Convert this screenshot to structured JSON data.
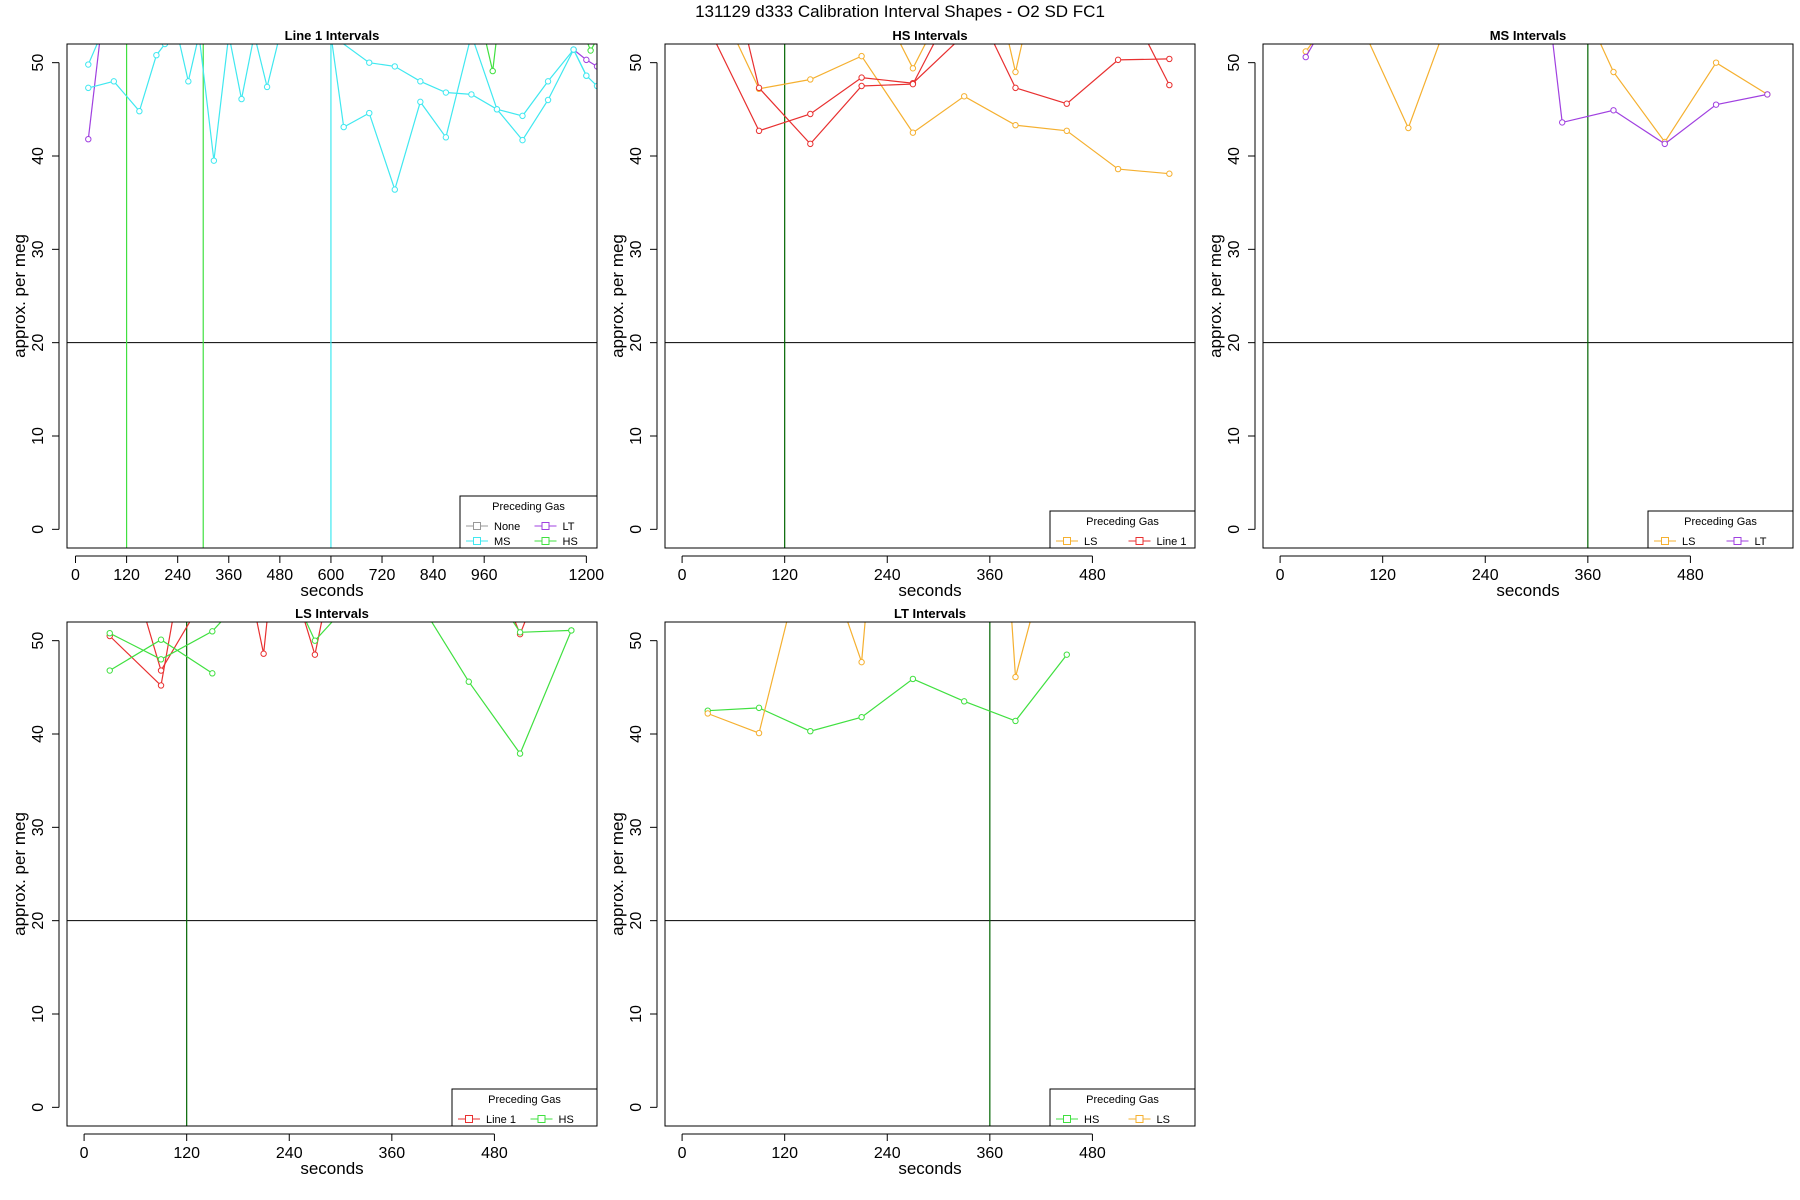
{
  "figure": {
    "title": "131129   d333   Calibration Interval Shapes - O2 SD FC1"
  },
  "colors": {
    "None": "#999999",
    "LT": "#a040e0",
    "MS": "#40e8f0",
    "HS": "#40e040",
    "LS": "#f5b030",
    "Line 1": "#e83030",
    "vline": "#006400",
    "hline": "#000000"
  },
  "chart_data": [
    {
      "type": "line",
      "title": "Line 1 Intervals",
      "xlabel": "seconds",
      "ylabel": "approx. per meg",
      "xlim": [
        -20,
        1225
      ],
      "ylim": [
        -2,
        52
      ],
      "xticks": [
        0,
        120,
        240,
        360,
        480,
        600,
        720,
        840,
        960,
        1200
      ],
      "yticks": [
        0,
        10,
        20,
        30,
        40,
        50
      ],
      "hline": 20,
      "vlines": [
        {
          "x": 120,
          "color": "HS"
        },
        {
          "x": 300,
          "color": "HS"
        },
        {
          "x": 600,
          "color": "MS"
        }
      ],
      "legend": {
        "title": "Preceding Gas",
        "position": "bottom-right",
        "columns": 2,
        "entries": [
          "None",
          "LT",
          "MS",
          "HS"
        ]
      },
      "series": [
        {
          "name": "LT",
          "color": "LT",
          "segments": [
            {
              "x": [
                30,
                60
              ],
              "y": [
                41.8,
                53.5
              ]
            },
            {
              "x": [
                1170,
                1200,
                1225
              ],
              "y": [
                51.4,
                50.3,
                49.6
              ]
            }
          ]
        },
        {
          "name": "MS",
          "color": "MS",
          "segments": [
            {
              "x": [
                30,
                60
              ],
              "y": [
                49.8,
                53
              ]
            },
            {
              "x": [
                30,
                90,
                150,
                190,
                210,
                240
              ],
              "y": [
                47.3,
                48,
                44.8,
                50.8,
                52,
                53
              ]
            },
            {
              "x": [
                240,
                265,
                290,
                325,
                360
              ],
              "y": [
                53,
                48,
                53,
                39.5,
                53
              ]
            },
            {
              "x": [
                360,
                390,
                420
              ],
              "y": [
                53,
                46.1,
                53
              ]
            },
            {
              "x": [
                420,
                450,
                480
              ],
              "y": [
                53,
                47.4,
                53
              ]
            },
            {
              "x": [
                600,
                630,
                690,
                750,
                810,
                870,
                930,
                990,
                1050,
                1110,
                1170,
                1200,
                1225
              ],
              "y": [
                53,
                43.1,
                44.6,
                36.4,
                45.8,
                42,
                53,
                45,
                41.7,
                46,
                51.4,
                48.6,
                47.5
              ]
            },
            {
              "x": [
                600,
                690,
                750,
                810,
                870,
                930,
                990,
                1050,
                1110,
                1170,
                1200
              ],
              "y": [
                53,
                50,
                49.6,
                48,
                46.8,
                46.6,
                45,
                44.3,
                48,
                51.4,
                48.6
              ]
            }
          ]
        },
        {
          "name": "HS",
          "color": "HS",
          "segments": [
            {
              "x": [
                960,
                980,
                990
              ],
              "y": [
                53,
                49.1,
                53
              ]
            },
            {
              "x": [
                1195,
                1210,
                1225
              ],
              "y": [
                53,
                51.3,
                52.5
              ]
            }
          ]
        }
      ]
    },
    {
      "type": "line",
      "title": "HS Intervals",
      "xlabel": "seconds",
      "ylabel": "approx. per meg",
      "xlim": [
        -20,
        600
      ],
      "ylim": [
        -2,
        52
      ],
      "xticks": [
        0,
        120,
        240,
        360,
        480
      ],
      "yticks": [
        0,
        10,
        20,
        30,
        40,
        50
      ],
      "hline": 20,
      "vlines": [
        {
          "x": 120,
          "color": "vline"
        }
      ],
      "legend": {
        "title": "Preceding Gas",
        "position": "bottom-right",
        "columns": 2,
        "entries": [
          "LS",
          "Line 1"
        ]
      },
      "series": [
        {
          "name": "LS",
          "color": "LS",
          "segments": [
            {
              "x": [
                60,
                90,
                150,
                210,
                270,
                330,
                390,
                450,
                510,
                570
              ],
              "y": [
                53,
                47.2,
                48.2,
                50.7,
                42.5,
                46.4,
                43.3,
                42.7,
                38.6,
                38.1
              ]
            },
            {
              "x": [
                250,
                270,
                290
              ],
              "y": [
                53,
                49.4,
                53
              ]
            },
            {
              "x": [
                380,
                390,
                400
              ],
              "y": [
                53,
                49,
                53
              ]
            }
          ]
        },
        {
          "name": "Line 1",
          "color": "Line 1",
          "segments": [
            {
              "x": [
                35,
                90,
                150,
                210,
                270,
                330
              ],
              "y": [
                53,
                42.7,
                44.5,
                48.4,
                47.8,
                53
              ]
            },
            {
              "x": [
                75,
                90,
                150,
                210,
                270,
                300
              ],
              "y": [
                53,
                47.3,
                41.3,
                47.5,
                47.7,
                53
              ]
            },
            {
              "x": [
                360,
                390,
                450,
                510,
                570
              ],
              "y": [
                53,
                47.3,
                45.6,
                50.3,
                50.4
              ]
            },
            {
              "x": [
                540,
                570
              ],
              "y": [
                53,
                47.6
              ]
            }
          ]
        }
      ]
    },
    {
      "type": "line",
      "title": "MS Intervals",
      "xlabel": "seconds",
      "ylabel": "approx. per meg",
      "xlim": [
        -20,
        600
      ],
      "ylim": [
        -2,
        52
      ],
      "xticks": [
        0,
        120,
        240,
        360,
        480
      ],
      "yticks": [
        0,
        10,
        20,
        30,
        40,
        50
      ],
      "hline": 20,
      "vlines": [
        {
          "x": 360,
          "color": "vline"
        }
      ],
      "legend": {
        "title": "Preceding Gas",
        "position": "bottom-right",
        "columns": 2,
        "entries": [
          "LS",
          "LT"
        ]
      },
      "series": [
        {
          "name": "LS",
          "color": "LS",
          "segments": [
            {
              "x": [
                30,
                45
              ],
              "y": [
                51.2,
                53
              ]
            },
            {
              "x": [
                100,
                150,
                190
              ],
              "y": [
                53,
                43,
                53
              ]
            },
            {
              "x": [
                370,
                390,
                450,
                510,
                570
              ],
              "y": [
                53,
                49,
                41.5,
                50,
                46.6
              ]
            }
          ]
        },
        {
          "name": "LT",
          "color": "LT",
          "segments": [
            {
              "x": [
                30,
                45
              ],
              "y": [
                50.6,
                53
              ]
            },
            {
              "x": [
                318,
                330,
                390,
                450,
                510,
                570
              ],
              "y": [
                53,
                43.6,
                44.9,
                41.3,
                45.5,
                46.6
              ]
            }
          ]
        }
      ]
    },
    {
      "type": "line",
      "title": "LS Intervals",
      "xlabel": "seconds",
      "ylabel": "approx. per meg",
      "xlim": [
        -20,
        600
      ],
      "ylim": [
        -2,
        52
      ],
      "xticks": [
        0,
        120,
        240,
        360,
        480
      ],
      "yticks": [
        0,
        10,
        20,
        30,
        40,
        50
      ],
      "hline": 20,
      "vlines": [
        {
          "x": 120,
          "color": "vline"
        }
      ],
      "legend": {
        "title": "Preceding Gas",
        "position": "bottom-right",
        "columns": 2,
        "entries": [
          "Line 1",
          "HS"
        ]
      },
      "series": [
        {
          "name": "Line 1",
          "color": "Line 1",
          "segments": [
            {
              "x": [
                30,
                90,
                105
              ],
              "y": [
                50.5,
                45.2,
                53
              ]
            },
            {
              "x": [
                70,
                90,
                130
              ],
              "y": [
                53,
                46.8,
                53
              ]
            },
            {
              "x": [
                200,
                210,
                215
              ],
              "y": [
                53,
                48.6,
                53
              ]
            },
            {
              "x": [
                255,
                270,
                280
              ],
              "y": [
                53,
                48.5,
                53
              ]
            },
            {
              "x": [
                500,
                510,
                520
              ],
              "y": [
                53,
                50.7,
                53
              ]
            }
          ]
        },
        {
          "name": "HS",
          "color": "HS",
          "segments": [
            {
              "x": [
                30,
                90,
                150
              ],
              "y": [
                46.8,
                50.1,
                46.5
              ]
            },
            {
              "x": [
                30,
                90,
                150,
                170
              ],
              "y": [
                50.8,
                48,
                51,
                53
              ]
            },
            {
              "x": [
                255,
                270,
                300
              ],
              "y": [
                53,
                50,
                53
              ]
            },
            {
              "x": [
                400,
                450,
                510,
                570
              ],
              "y": [
                53,
                45.6,
                37.9,
                51.1
              ]
            },
            {
              "x": [
                495,
                510,
                570
              ],
              "y": [
                53,
                50.9,
                51.1
              ]
            }
          ]
        }
      ]
    },
    {
      "type": "line",
      "title": "LT Intervals",
      "xlabel": "seconds",
      "ylabel": "approx. per meg",
      "xlim": [
        -20,
        600
      ],
      "ylim": [
        -2,
        52
      ],
      "xticks": [
        0,
        120,
        240,
        360,
        480
      ],
      "yticks": [
        0,
        10,
        20,
        30,
        40,
        50
      ],
      "hline": 20,
      "vlines": [
        {
          "x": 360,
          "color": "vline"
        }
      ],
      "legend": {
        "title": "Preceding Gas",
        "position": "bottom-right",
        "columns": 2,
        "entries": [
          "HS",
          "LS"
        ]
      },
      "series": [
        {
          "name": "HS",
          "color": "HS",
          "segments": [
            {
              "x": [
                30,
                90,
                150,
                210,
                270,
                330,
                390,
                450
              ],
              "y": [
                42.5,
                42.8,
                40.3,
                41.8,
                45.9,
                43.5,
                41.4,
                48.5
              ]
            }
          ]
        },
        {
          "name": "LS",
          "color": "LS",
          "segments": [
            {
              "x": [
                30,
                90,
                125
              ],
              "y": [
                42.2,
                40.1,
                53
              ]
            },
            {
              "x": [
                190,
                210,
                215
              ],
              "y": [
                53,
                47.7,
                53
              ]
            },
            {
              "x": [
                385,
                390,
                410
              ],
              "y": [
                53,
                46.1,
                53
              ]
            }
          ]
        }
      ]
    }
  ]
}
